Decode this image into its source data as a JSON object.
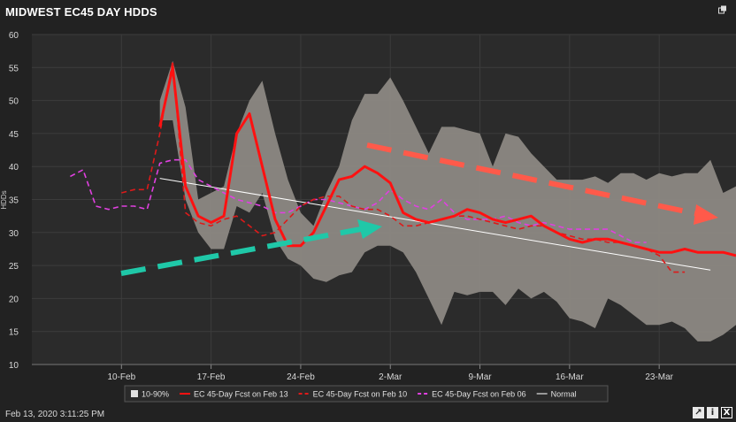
{
  "header": {
    "title": "MIDWEST EC45 DAY HDDS"
  },
  "footer": {
    "timestamp": "Feb 13, 2020 3:11:25 PM"
  },
  "icons": [
    "popout-icon",
    "export-icon",
    "info-icon",
    "close-icon"
  ],
  "colors": {
    "background": "#222222",
    "band": "#8f8b86",
    "fcst13": "#ff1111",
    "fcst10": "#dd1a1a",
    "fcst06": "#e040e0",
    "normal": "#ffffff",
    "arrow_up": "#1fc8a8",
    "arrow_down": "#ff5a4a"
  },
  "chart_data": {
    "type": "line",
    "ylabel": "HDDs",
    "ylim": [
      10,
      60
    ],
    "yticks": [
      "10",
      "15",
      "20",
      "25",
      "30",
      "35",
      "40",
      "45",
      "50",
      "55",
      "60"
    ],
    "x_start": "2020-02-03",
    "x_end": "2020-03-29",
    "xticks": [
      {
        "label": "10-Feb",
        "date": "2020-02-10"
      },
      {
        "label": "17-Feb",
        "date": "2020-02-17"
      },
      {
        "label": "24-Feb",
        "date": "2020-02-24"
      },
      {
        "label": "2-Mar",
        "date": "2020-03-02"
      },
      {
        "label": "9-Mar",
        "date": "2020-03-09"
      },
      {
        "label": "16-Mar",
        "date": "2020-03-16"
      },
      {
        "label": "23-Mar",
        "date": "2020-03-23"
      }
    ],
    "legend": [
      "10-90%",
      "EC 45-Day Fcst on Feb 13",
      "EC 45-Day Fcst on Feb 10",
      "EC 45-Day Fcst on Feb 06",
      "Normal"
    ],
    "band": {
      "name": "10-90%",
      "dates": [
        "2020-02-13",
        "2020-02-14",
        "2020-02-15",
        "2020-02-16",
        "2020-02-17",
        "2020-02-18",
        "2020-02-19",
        "2020-02-20",
        "2020-02-21",
        "2020-02-22",
        "2020-02-23",
        "2020-02-24",
        "2020-02-25",
        "2020-02-26",
        "2020-02-27",
        "2020-02-28",
        "2020-02-29",
        "2020-03-01",
        "2020-03-02",
        "2020-03-03",
        "2020-03-04",
        "2020-03-05",
        "2020-03-06",
        "2020-03-07",
        "2020-03-08",
        "2020-03-09",
        "2020-03-10",
        "2020-03-11",
        "2020-03-12",
        "2020-03-13",
        "2020-03-14",
        "2020-03-15",
        "2020-03-16",
        "2020-03-17",
        "2020-03-18",
        "2020-03-19",
        "2020-03-20",
        "2020-03-21",
        "2020-03-22",
        "2020-03-23",
        "2020-03-24",
        "2020-03-25",
        "2020-03-26",
        "2020-03-27",
        "2020-03-28",
        "2020-03-29"
      ],
      "low": [
        47,
        47,
        35,
        30,
        27.5,
        27.5,
        34,
        33,
        36,
        29,
        26,
        25,
        23,
        22.5,
        23.5,
        24,
        27,
        28,
        28,
        27,
        24,
        20,
        16,
        21,
        20.5,
        21,
        21,
        19,
        21.5,
        20,
        21,
        19.5,
        17,
        16.5,
        15.5,
        20,
        19,
        17.5,
        16,
        16,
        16.5,
        15.5,
        13.5,
        13.5,
        14.5,
        16
      ],
      "high": [
        50,
        56,
        49,
        35,
        36,
        37,
        45,
        50,
        53,
        45,
        38,
        33,
        31,
        36,
        40,
        47,
        51,
        51,
        53.5,
        50,
        46,
        42,
        46,
        46,
        45.5,
        45,
        40,
        45,
        44.5,
        42,
        40,
        38,
        38,
        38,
        38.5,
        37.5,
        39,
        39,
        38,
        39,
        38.5,
        39,
        39,
        41,
        36,
        37
      ]
    },
    "series": [
      {
        "name": "EC 45-Day Fcst on Feb 13",
        "style": "solid",
        "dates": [
          "2020-02-13",
          "2020-02-14",
          "2020-02-15",
          "2020-02-16",
          "2020-02-17",
          "2020-02-18",
          "2020-02-19",
          "2020-02-20",
          "2020-02-21",
          "2020-02-22",
          "2020-02-23",
          "2020-02-24",
          "2020-02-25",
          "2020-02-26",
          "2020-02-27",
          "2020-02-28",
          "2020-02-29",
          "2020-03-01",
          "2020-03-02",
          "2020-03-03",
          "2020-03-04",
          "2020-03-05",
          "2020-03-06",
          "2020-03-07",
          "2020-03-08",
          "2020-03-09",
          "2020-03-10",
          "2020-03-11",
          "2020-03-12",
          "2020-03-13",
          "2020-03-14",
          "2020-03-15",
          "2020-03-16",
          "2020-03-17",
          "2020-03-18",
          "2020-03-19",
          "2020-03-20",
          "2020-03-21",
          "2020-03-22",
          "2020-03-23",
          "2020-03-24",
          "2020-03-25",
          "2020-03-26",
          "2020-03-27",
          "2020-03-28",
          "2020-03-29"
        ],
        "values": [
          46,
          55,
          37,
          32.5,
          31.5,
          32.5,
          45,
          48,
          40,
          32,
          28,
          28,
          30,
          34,
          38,
          38.5,
          40,
          39,
          37.5,
          33,
          32,
          31.5,
          32,
          32.5,
          33.5,
          33,
          32,
          31.5,
          32,
          32.5,
          31,
          30,
          29,
          28.5,
          29,
          29,
          28.5,
          28,
          27.5,
          27,
          27,
          27.5,
          27,
          27,
          27,
          26.5
        ]
      },
      {
        "name": "EC 45-Day Fcst on Feb 10",
        "style": "dashed",
        "dates": [
          "2020-02-10",
          "2020-02-11",
          "2020-02-12",
          "2020-02-13",
          "2020-02-14",
          "2020-02-15",
          "2020-02-16",
          "2020-02-17",
          "2020-02-18",
          "2020-02-19",
          "2020-02-20",
          "2020-02-21",
          "2020-02-22",
          "2020-02-23",
          "2020-02-24",
          "2020-02-25",
          "2020-02-26",
          "2020-02-27",
          "2020-02-28",
          "2020-02-29",
          "2020-03-01",
          "2020-03-02",
          "2020-03-03",
          "2020-03-04",
          "2020-03-05",
          "2020-03-06",
          "2020-03-07",
          "2020-03-08",
          "2020-03-09",
          "2020-03-10",
          "2020-03-11",
          "2020-03-12",
          "2020-03-13",
          "2020-03-14",
          "2020-03-15",
          "2020-03-16",
          "2020-03-17",
          "2020-03-18",
          "2020-03-19",
          "2020-03-20",
          "2020-03-21",
          "2020-03-22",
          "2020-03-23",
          "2020-03-24",
          "2020-03-25"
        ],
        "values": [
          36,
          36.5,
          36.5,
          45,
          56,
          33,
          31.5,
          31,
          32,
          32.5,
          31,
          29.5,
          30,
          32,
          34,
          35,
          35.5,
          35.5,
          34,
          33.5,
          33.5,
          32.5,
          31,
          31,
          31.5,
          32,
          32.5,
          32.5,
          32,
          31.5,
          31,
          30.5,
          31,
          31,
          30,
          29.5,
          29,
          29,
          28.5,
          28.5,
          28,
          27.5,
          26.5,
          24,
          24
        ]
      },
      {
        "name": "EC 45-Day Fcst on Feb 06",
        "style": "dashed",
        "dates": [
          "2020-02-06",
          "2020-02-07",
          "2020-02-08",
          "2020-02-09",
          "2020-02-10",
          "2020-02-11",
          "2020-02-12",
          "2020-02-13",
          "2020-02-14",
          "2020-02-15",
          "2020-02-16",
          "2020-02-17",
          "2020-02-18",
          "2020-02-19",
          "2020-02-20",
          "2020-02-21",
          "2020-02-22",
          "2020-02-23",
          "2020-02-24",
          "2020-02-25",
          "2020-02-26",
          "2020-02-27",
          "2020-02-28",
          "2020-02-29",
          "2020-03-01",
          "2020-03-02",
          "2020-03-03",
          "2020-03-04",
          "2020-03-05",
          "2020-03-06",
          "2020-03-07",
          "2020-03-08",
          "2020-03-09",
          "2020-03-10",
          "2020-03-11",
          "2020-03-12",
          "2020-03-13",
          "2020-03-14",
          "2020-03-15",
          "2020-03-16",
          "2020-03-17",
          "2020-03-18",
          "2020-03-19",
          "2020-03-20",
          "2020-03-21",
          "2020-03-22"
        ],
        "values": [
          38.5,
          39.5,
          34,
          33.5,
          34,
          34,
          33.5,
          40.5,
          41,
          41,
          38,
          37,
          36,
          35,
          34.5,
          34,
          33,
          33,
          34,
          35,
          35,
          34.5,
          34,
          33.5,
          34.5,
          36.5,
          35,
          34,
          33.5,
          35,
          33,
          32,
          32,
          32,
          32.5,
          31.5,
          31,
          31.5,
          31,
          30.5,
          30.5,
          30.5,
          30.5,
          29.5,
          28.5,
          28.5
        ]
      },
      {
        "name": "Normal",
        "style": "solid",
        "dates": [
          "2020-02-13",
          "2020-03-27"
        ],
        "values": [
          38.2,
          24.3
        ]
      }
    ]
  }
}
